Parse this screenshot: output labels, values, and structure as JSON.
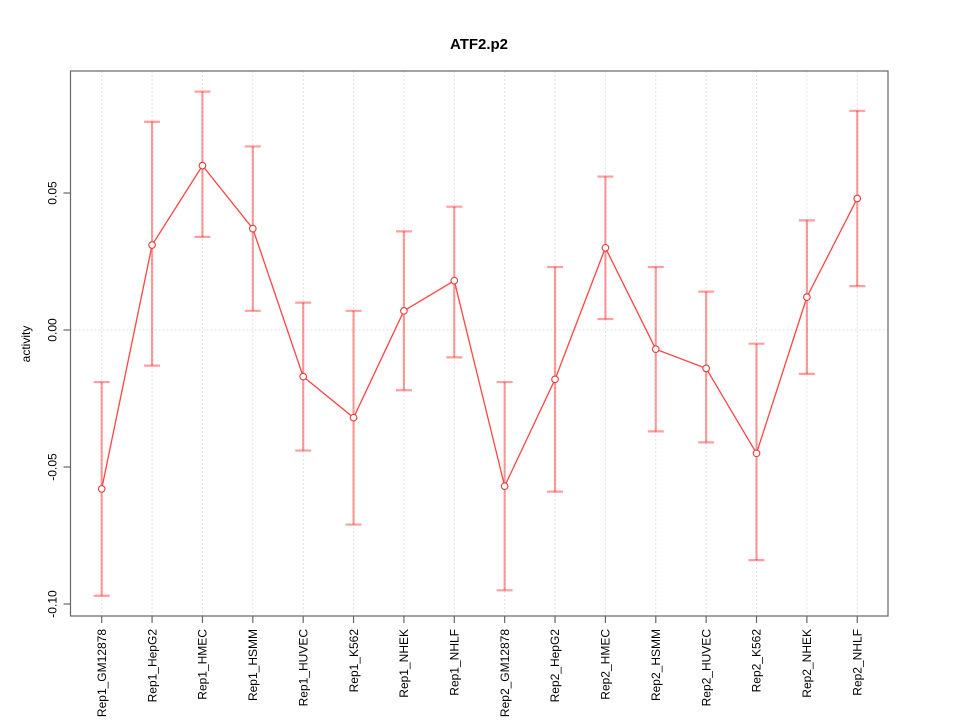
{
  "page": {
    "background": "#ffffff"
  },
  "chart_data": {
    "type": "line",
    "title": "ATF2.p2",
    "xlabel": "",
    "ylabel": "activity",
    "categories": [
      "Rep1_GM12878",
      "Rep1_HepG2",
      "Rep1_HMEC",
      "Rep1_HSMM",
      "Rep1_HUVEC",
      "Rep1_K562",
      "Rep1_NHEK",
      "Rep1_NHLF",
      "Rep2_GM12878",
      "Rep2_HepG2",
      "Rep2_HMEC",
      "Rep2_HSMM",
      "Rep2_HUVEC",
      "Rep2_K562",
      "Rep2_NHEK",
      "Rep2_NHLF"
    ],
    "series": [
      {
        "name": "activity",
        "marker": "open-circle",
        "values": [
          -0.058,
          0.031,
          0.06,
          0.037,
          -0.017,
          -0.032,
          0.007,
          0.018,
          -0.057,
          -0.018,
          0.03,
          -0.007,
          -0.014,
          -0.045,
          0.012,
          0.048
        ],
        "err_low": [
          -0.097,
          -0.013,
          0.034,
          0.007,
          -0.044,
          -0.071,
          -0.022,
          -0.01,
          -0.095,
          -0.059,
          0.004,
          -0.037,
          -0.041,
          -0.084,
          -0.016,
          0.016
        ],
        "err_high": [
          -0.019,
          0.076,
          0.087,
          0.067,
          0.01,
          0.007,
          0.036,
          0.045,
          -0.019,
          0.023,
          0.056,
          0.023,
          0.014,
          -0.005,
          0.04,
          0.08
        ]
      }
    ],
    "y_ticks": {
      "values": [
        0.05,
        0.0,
        -0.05,
        -0.1
      ],
      "labels": [
        "0.05",
        "0.00",
        "-0.05",
        "-0.10"
      ]
    },
    "ylim": [
      -0.1044,
      0.0945
    ],
    "grid": {
      "vertical": "dotted at each category",
      "horizontal": "dotted at 0 only"
    },
    "legend": "none",
    "colors": {
      "line": "#ff4444",
      "point": "#e23b3b",
      "error_bar": "rgba(255,0,0,0.38)",
      "grid": "#e0e0e0",
      "axis": "#666666",
      "text": "#000000"
    }
  }
}
